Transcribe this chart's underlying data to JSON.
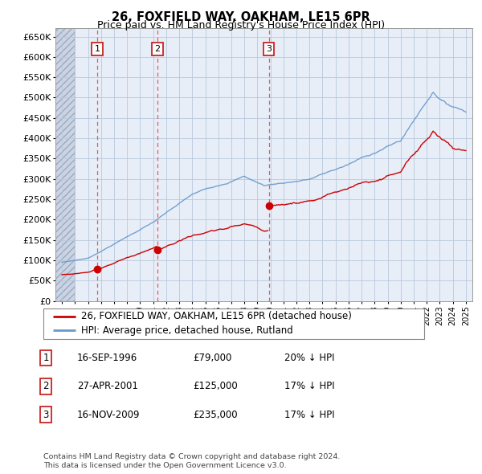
{
  "title": "26, FOXFIELD WAY, OAKHAM, LE15 6PR",
  "subtitle": "Price paid vs. HM Land Registry's House Price Index (HPI)",
  "legend_property": "26, FOXFIELD WAY, OAKHAM, LE15 6PR (detached house)",
  "legend_hpi": "HPI: Average price, detached house, Rutland",
  "footer1": "Contains HM Land Registry data © Crown copyright and database right 2024.",
  "footer2": "This data is licensed under the Open Government Licence v3.0.",
  "transactions": [
    {
      "num": 1,
      "date": "16-SEP-1996",
      "price": "£79,000",
      "pct": "20% ↓ HPI",
      "year": 1996.71,
      "value": 79000
    },
    {
      "num": 2,
      "date": "27-APR-2001",
      "price": "£125,000",
      "pct": "17% ↓ HPI",
      "year": 2001.32,
      "value": 125000
    },
    {
      "num": 3,
      "date": "16-NOV-2009",
      "price": "£235,000",
      "pct": "17% ↓ HPI",
      "year": 2009.87,
      "value": 235000
    }
  ],
  "property_color": "#cc0000",
  "hpi_color": "#6699cc",
  "vline_color": "#dd4444",
  "dot_color": "#cc0000",
  "ylim": [
    0,
    670000
  ],
  "yticks": [
    0,
    50000,
    100000,
    150000,
    200000,
    250000,
    300000,
    350000,
    400000,
    450000,
    500000,
    550000,
    600000,
    650000
  ],
  "ytick_labels": [
    "£0",
    "£50K",
    "£100K",
    "£150K",
    "£200K",
    "£250K",
    "£300K",
    "£350K",
    "£400K",
    "£450K",
    "£500K",
    "£550K",
    "£600K",
    "£650K"
  ],
  "xlim_start": 1993.5,
  "xlim_end": 2025.5,
  "background_chart": "#e8eef8",
  "background_hatch_color": "#ccd4e4",
  "grid_color": "#b8c8dc",
  "hatch_end": 1995.0,
  "data_end": 2025.0
}
